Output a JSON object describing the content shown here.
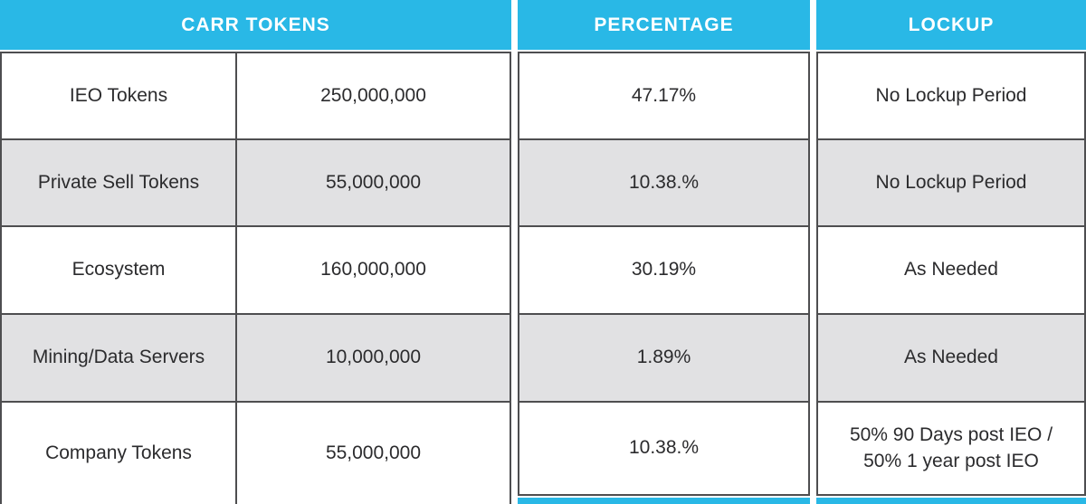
{
  "table": {
    "headers": {
      "carr_tokens": "CARR TOKENS",
      "percentage": "PERCENTAGE",
      "lockup": "LOCKUP"
    },
    "rows": [
      {
        "name": "IEO Tokens",
        "amount": "250,000,000",
        "percentage": "47.17%",
        "lockup": "No Lockup Period"
      },
      {
        "name": "Private Sell Tokens",
        "amount": "55,000,000",
        "percentage": "10.38.%",
        "lockup": "No Lockup Period"
      },
      {
        "name": "Ecosystem",
        "amount": "160,000,000",
        "percentage": "30.19%",
        "lockup": "As Needed"
      },
      {
        "name": "Mining/Data Servers",
        "amount": "10,000,000",
        "percentage": "1.89%",
        "lockup": "As Needed"
      },
      {
        "name": "Company Tokens",
        "amount": "55,000,000",
        "percentage": "10.38.%",
        "lockup": "50% 90 Days post IEO /\n50% 1 year post IEO"
      }
    ],
    "colors": {
      "header_bg": "#29b8e6",
      "header_text": "#ffffff",
      "row_bg": "#ffffff",
      "row_alt_bg": "#e1e1e3",
      "border": "#4e4e50",
      "text": "#2b2b2d"
    }
  }
}
